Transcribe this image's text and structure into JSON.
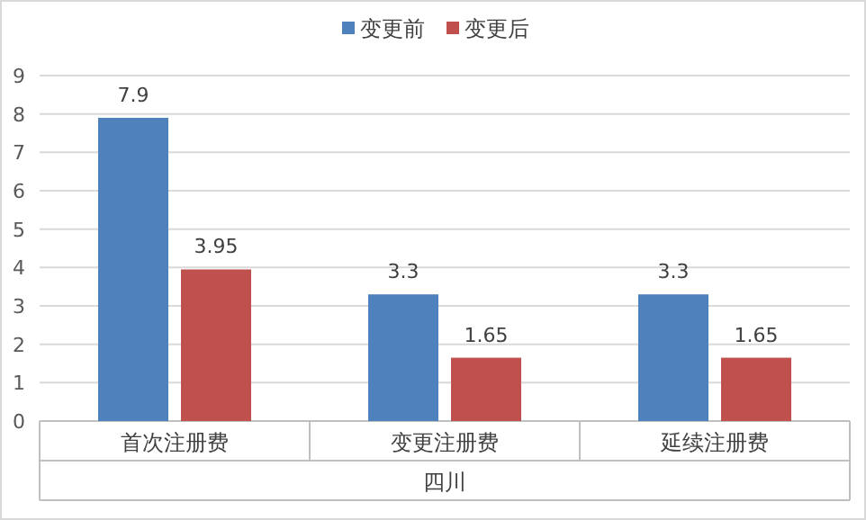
{
  "chart_data": {
    "type": "bar",
    "categories": [
      "首次注册费",
      "变更注册费",
      "延续注册费"
    ],
    "xlabel": "四川",
    "series": [
      {
        "name": "变更前",
        "color": "#4f81bd",
        "values": [
          7.9,
          3.3,
          3.3
        ]
      },
      {
        "name": "变更后",
        "color": "#c0504d",
        "values": [
          3.95,
          1.65,
          1.65
        ]
      }
    ],
    "ylim": [
      0,
      9
    ],
    "yticks": [
      0,
      1,
      2,
      3,
      4,
      5,
      6,
      7,
      8,
      9
    ],
    "grid": "y",
    "legend": "top",
    "data_labels": true
  }
}
